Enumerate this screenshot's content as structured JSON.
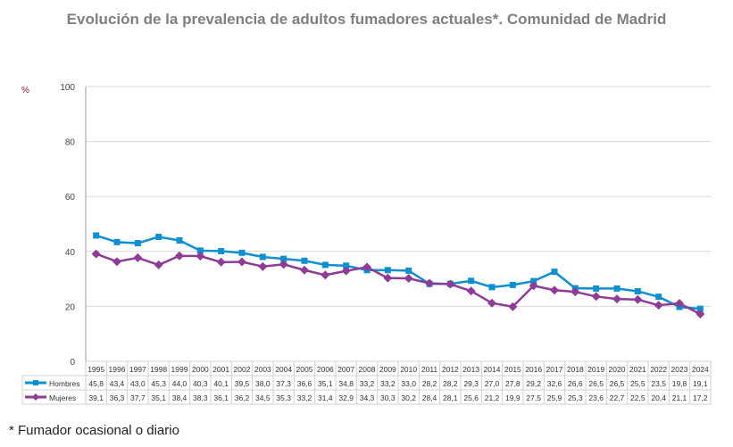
{
  "title": "Evolución de la prevalencia de adultos fumadores actuales*. Comunidad de Madrid",
  "footnote": "* Fumador ocasional o diario",
  "chart_data": {
    "type": "line",
    "title": "Evolución de la prevalencia de adultos fumadores actuales*. Comunidad de Madrid",
    "ylabel": "%",
    "ylim": [
      0,
      100
    ],
    "yticks": [
      0,
      20,
      40,
      60,
      80,
      100
    ],
    "grid": true,
    "legend": "data-table",
    "categories": [
      "1995",
      "1996",
      "1997",
      "1998",
      "1999",
      "2000",
      "2001",
      "2002",
      "2003",
      "2004",
      "2005",
      "2006",
      "2007",
      "2008",
      "2009",
      "2010",
      "2011",
      "2012",
      "2013",
      "2014",
      "2015",
      "2016",
      "2017",
      "2018",
      "2019",
      "2020",
      "2021",
      "2022",
      "2023",
      "2024"
    ],
    "series": [
      {
        "name": "Hombres",
        "color": "#0e8fd1",
        "marker": "square",
        "values": [
          45.8,
          43.4,
          43.0,
          45.3,
          44.0,
          40.3,
          40.1,
          39.5,
          38.0,
          37.3,
          36.6,
          35.1,
          34.8,
          33.2,
          33.2,
          33.0,
          28.2,
          28.2,
          29.3,
          27.0,
          27.8,
          29.2,
          32.6,
          26.6,
          26.5,
          26.5,
          25.5,
          23.5,
          19.8,
          19.1
        ]
      },
      {
        "name": "Mujeres",
        "color": "#8e3c96",
        "marker": "diamond",
        "values": [
          39.1,
          36.3,
          37.7,
          35.1,
          38.4,
          38.3,
          36.1,
          36.2,
          34.5,
          35.3,
          33.2,
          31.4,
          32.9,
          34.3,
          30.3,
          30.2,
          28.4,
          28.1,
          25.6,
          21.2,
          19.9,
          27.5,
          25.9,
          25.3,
          23.6,
          22.7,
          22.5,
          20.4,
          21.1,
          17.2
        ]
      }
    ]
  }
}
